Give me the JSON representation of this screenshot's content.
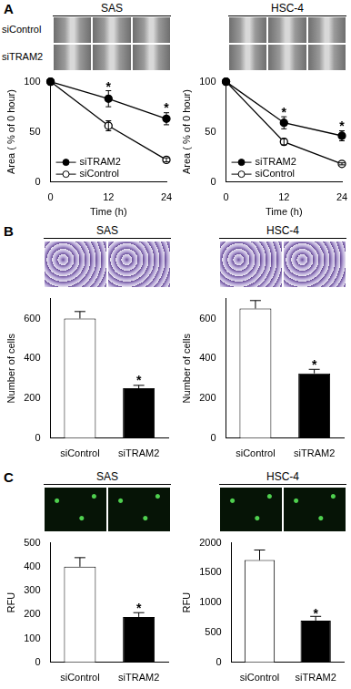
{
  "panels": [
    {
      "label": "A",
      "image_row_labels": [
        "siControl",
        "siTRAM2"
      ]
    },
    {
      "label": "B"
    },
    {
      "label": "C"
    }
  ],
  "chart_data": [
    {
      "type": "line",
      "title": "SAS",
      "x_label": "Time (h)",
      "y_label": "Area ( % of 0 hour)",
      "x": [
        0,
        12,
        24
      ],
      "xlim": [
        0,
        24
      ],
      "xticks": [
        0,
        12,
        24
      ],
      "ylim": [
        0,
        100
      ],
      "yticks": [
        0,
        50,
        100
      ],
      "grid": false,
      "legend": "lower left",
      "series": [
        {
          "name": "siTRAM2",
          "color": "#000000",
          "marker": "circle",
          "values": [
            100,
            83,
            63
          ],
          "errors": [
            0,
            8,
            6
          ]
        },
        {
          "name": "siControl",
          "color": "#000000",
          "marker": "open_circle",
          "values": [
            100,
            56,
            22
          ],
          "errors": [
            0,
            5,
            2
          ]
        }
      ],
      "annotations": [
        {
          "x": 12,
          "y": 94,
          "text": "*"
        },
        {
          "x": 24,
          "y": 73,
          "text": "*"
        }
      ]
    },
    {
      "type": "line",
      "title": "HSC-4",
      "x_label": "Time (h)",
      "y_label": "Area ( % of 0 hour)",
      "x": [
        0,
        12,
        24
      ],
      "xlim": [
        0,
        24
      ],
      "xticks": [
        0,
        12,
        24
      ],
      "ylim": [
        0,
        100
      ],
      "yticks": [
        0,
        50,
        100
      ],
      "grid": false,
      "legend": "lower left",
      "series": [
        {
          "name": "siTRAM2",
          "color": "#000000",
          "marker": "circle",
          "values": [
            100,
            59,
            46
          ],
          "errors": [
            0,
            6,
            5
          ]
        },
        {
          "name": "siControl",
          "color": "#000000",
          "marker": "open_circle",
          "values": [
            100,
            40,
            18
          ],
          "errors": [
            0,
            3,
            1
          ]
        }
      ],
      "annotations": [
        {
          "x": 12,
          "y": 69,
          "text": "*"
        },
        {
          "x": 24,
          "y": 55,
          "text": "*"
        }
      ]
    },
    {
      "type": "bar",
      "title": "SAS",
      "y_label": "Number of cells",
      "categories": [
        "siControl",
        "siTRAM2"
      ],
      "values": [
        600,
        250
      ],
      "errors": [
        35,
        15
      ],
      "colors": [
        "#ffffff",
        "#000000"
      ],
      "ylim": [
        0,
        700
      ],
      "yticks": [
        0,
        200,
        400,
        600
      ],
      "grid": false,
      "annotations": [
        {
          "x": "siTRAM2",
          "y": 285,
          "text": "*"
        }
      ]
    },
    {
      "type": "bar",
      "title": "HSC-4",
      "y_label": "Number of cells",
      "categories": [
        "siControl",
        "siTRAM2"
      ],
      "values": [
        650,
        325
      ],
      "errors": [
        40,
        20
      ],
      "colors": [
        "#ffffff",
        "#000000"
      ],
      "ylim": [
        0,
        700
      ],
      "yticks": [
        0,
        200,
        400,
        600
      ],
      "grid": false,
      "annotations": [
        {
          "x": "siTRAM2",
          "y": 365,
          "text": "*"
        }
      ]
    },
    {
      "type": "bar",
      "title": "SAS",
      "y_label": "RFU",
      "categories": [
        "siControl",
        "siTRAM2"
      ],
      "values": [
        400,
        190
      ],
      "errors": [
        38,
        18
      ],
      "colors": [
        "#ffffff",
        "#000000"
      ],
      "ylim": [
        0,
        500
      ],
      "yticks": [
        0,
        100,
        200,
        300,
        400,
        500
      ],
      "grid": false,
      "annotations": [
        {
          "x": "siTRAM2",
          "y": 225,
          "text": "*"
        }
      ]
    },
    {
      "type": "bar",
      "title": "HSC-4",
      "y_label": "RFU",
      "categories": [
        "siControl",
        "siTRAM2"
      ],
      "values": [
        1710,
        700
      ],
      "errors": [
        170,
        70
      ],
      "colors": [
        "#ffffff",
        "#000000"
      ],
      "ylim": [
        0,
        2000
      ],
      "yticks": [
        0,
        500,
        1000,
        1500,
        2000
      ],
      "grid": false,
      "annotations": [
        {
          "x": "siTRAM2",
          "y": 810,
          "text": "*"
        }
      ]
    }
  ]
}
